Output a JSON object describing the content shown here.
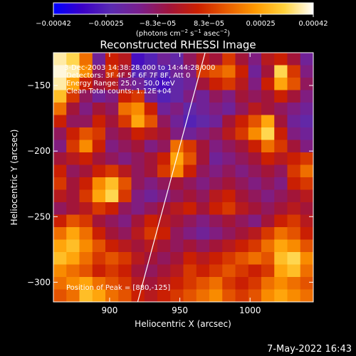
{
  "chart_data": {
    "type": "heatmap",
    "title": "Reconstructed RHESSI Image",
    "xlabel": "Heliocentric X (arcsec)",
    "ylabel": "Heliocentric Y (arcsec)",
    "xlim": [
      860,
      1045
    ],
    "ylim": [
      -315,
      -125
    ],
    "x_ticks": [
      900,
      950,
      1000
    ],
    "y_ticks": [
      -150,
      -200,
      -250,
      -300
    ],
    "x_tick_labels": [
      "900",
      "950",
      "1000"
    ],
    "y_tick_labels": [
      "−150",
      "−200",
      "−250",
      "−300"
    ],
    "colorbar": {
      "range": [
        -0.00042,
        0.00042
      ],
      "tick_values": [
        -0.00042,
        -0.00025,
        -8.3e-05,
        8.3e-05,
        0.00025,
        0.00042
      ],
      "tick_labels": [
        "−0.00042",
        "−0.00025",
        "−8.3e−05",
        "8.3e−05",
        "0.00025",
        "0.00042"
      ],
      "unit_prefix": "(photons cm",
      "unit_exp1": "−2",
      "unit_mid": " s",
      "unit_exp2": "−1",
      "unit_mid2": " asec",
      "unit_exp3": "−2",
      "unit_suffix": ")",
      "colors": [
        "#0000ff",
        "#3b00c8",
        "#5a2bb0",
        "#7a1e8c",
        "#a0143c",
        "#cc2000",
        "#e85c00",
        "#ff9a00",
        "#ffd23c",
        "#ffffff"
      ]
    },
    "annotations": {
      "time_range": "3-Dec-2003 14:38:28.000 to 14:44:28.000",
      "detectors": "Detectors: 3F 4F 5F 6F 7F 8F, Att 0",
      "energy": "Energy Range: 25.0 - 50.0 keV",
      "clean": "Clean    Total counts: 1.12E+04",
      "peak": "Position of Peak = [880,-125]"
    },
    "limb_line": {
      "x": [
        920,
        968
      ],
      "y": [
        -315,
        -125
      ]
    },
    "image_grid": {
      "rows": 20,
      "cols": 20,
      "values": [
        [
          0.95,
          0.9,
          0.7,
          0.3,
          0.55,
          0.5,
          0.15,
          0.2,
          0.3,
          0.25,
          0.4,
          0.5,
          0.45,
          0.6,
          0.45,
          0.35,
          0.5,
          0.55,
          0.45,
          0.3
        ],
        [
          0.98,
          0.95,
          0.75,
          0.4,
          0.6,
          0.45,
          0.2,
          0.25,
          0.2,
          0.3,
          0.35,
          0.6,
          0.65,
          0.7,
          0.55,
          0.3,
          0.45,
          0.9,
          0.6,
          0.35
        ],
        [
          0.95,
          0.8,
          0.55,
          0.45,
          0.5,
          0.35,
          0.3,
          0.2,
          0.15,
          0.25,
          0.3,
          0.45,
          0.55,
          0.6,
          0.5,
          0.35,
          0.55,
          0.8,
          0.65,
          0.4
        ],
        [
          0.85,
          0.6,
          0.4,
          0.3,
          0.35,
          0.55,
          0.6,
          0.3,
          0.2,
          0.25,
          0.35,
          0.3,
          0.4,
          0.35,
          0.45,
          0.4,
          0.45,
          0.55,
          0.45,
          0.35
        ],
        [
          0.7,
          0.45,
          0.35,
          0.45,
          0.4,
          0.7,
          0.75,
          0.55,
          0.3,
          0.35,
          0.25,
          0.3,
          0.35,
          0.3,
          0.4,
          0.5,
          0.45,
          0.4,
          0.35,
          0.3
        ],
        [
          0.55,
          0.4,
          0.4,
          0.55,
          0.45,
          0.6,
          0.8,
          0.65,
          0.4,
          0.3,
          0.2,
          0.25,
          0.3,
          0.45,
          0.55,
          0.65,
          0.8,
          0.45,
          0.3,
          0.25
        ],
        [
          0.4,
          0.55,
          0.65,
          0.6,
          0.4,
          0.45,
          0.55,
          0.5,
          0.45,
          0.35,
          0.3,
          0.35,
          0.4,
          0.5,
          0.6,
          0.75,
          0.9,
          0.55,
          0.35,
          0.3
        ],
        [
          0.35,
          0.6,
          0.75,
          0.55,
          0.35,
          0.4,
          0.45,
          0.35,
          0.4,
          0.7,
          0.6,
          0.45,
          0.35,
          0.4,
          0.45,
          0.55,
          0.7,
          0.6,
          0.45,
          0.35
        ],
        [
          0.45,
          0.5,
          0.55,
          0.45,
          0.4,
          0.35,
          0.4,
          0.45,
          0.55,
          0.8,
          0.65,
          0.45,
          0.3,
          0.35,
          0.4,
          0.45,
          0.55,
          0.5,
          0.55,
          0.6
        ],
        [
          0.55,
          0.4,
          0.45,
          0.55,
          0.6,
          0.5,
          0.4,
          0.45,
          0.6,
          0.75,
          0.55,
          0.4,
          0.35,
          0.4,
          0.35,
          0.4,
          0.45,
          0.4,
          0.6,
          0.7
        ],
        [
          0.6,
          0.45,
          0.55,
          0.75,
          0.85,
          0.65,
          0.4,
          0.35,
          0.4,
          0.45,
          0.4,
          0.35,
          0.4,
          0.45,
          0.4,
          0.35,
          0.4,
          0.35,
          0.55,
          0.6
        ],
        [
          0.5,
          0.45,
          0.6,
          0.8,
          0.9,
          0.6,
          0.35,
          0.3,
          0.35,
          0.4,
          0.45,
          0.4,
          0.5,
          0.55,
          0.45,
          0.4,
          0.35,
          0.4,
          0.45,
          0.5
        ],
        [
          0.4,
          0.45,
          0.5,
          0.6,
          0.55,
          0.4,
          0.35,
          0.4,
          0.45,
          0.5,
          0.55,
          0.45,
          0.55,
          0.6,
          0.5,
          0.45,
          0.4,
          0.45,
          0.5,
          0.45
        ],
        [
          0.55,
          0.65,
          0.6,
          0.45,
          0.4,
          0.35,
          0.45,
          0.55,
          0.5,
          0.45,
          0.4,
          0.35,
          0.4,
          0.45,
          0.4,
          0.35,
          0.45,
          0.55,
          0.6,
          0.5
        ],
        [
          0.7,
          0.8,
          0.7,
          0.55,
          0.45,
          0.4,
          0.5,
          0.6,
          0.55,
          0.4,
          0.35,
          0.3,
          0.35,
          0.4,
          0.45,
          0.5,
          0.6,
          0.7,
          0.65,
          0.55
        ],
        [
          0.8,
          0.85,
          0.75,
          0.65,
          0.55,
          0.5,
          0.45,
          0.5,
          0.45,
          0.4,
          0.45,
          0.4,
          0.45,
          0.5,
          0.55,
          0.6,
          0.7,
          0.8,
          0.75,
          0.65
        ],
        [
          0.85,
          0.8,
          0.7,
          0.6,
          0.65,
          0.6,
          0.5,
          0.45,
          0.4,
          0.45,
          0.55,
          0.5,
          0.55,
          0.6,
          0.65,
          0.7,
          0.65,
          0.85,
          0.9,
          0.75
        ],
        [
          0.75,
          0.7,
          0.65,
          0.55,
          0.6,
          0.55,
          0.45,
          0.4,
          0.45,
          0.5,
          0.6,
          0.55,
          0.6,
          0.65,
          0.6,
          0.55,
          0.6,
          0.8,
          0.85,
          0.7
        ],
        [
          0.7,
          0.75,
          0.8,
          0.7,
          0.65,
          0.6,
          0.5,
          0.45,
          0.5,
          0.55,
          0.6,
          0.65,
          0.7,
          0.6,
          0.55,
          0.6,
          0.7,
          0.75,
          0.7,
          0.65
        ],
        [
          0.65,
          0.7,
          0.85,
          0.8,
          0.7,
          0.65,
          0.55,
          0.5,
          0.55,
          0.6,
          0.65,
          0.7,
          0.75,
          0.65,
          0.6,
          0.65,
          0.75,
          0.8,
          0.75,
          0.7
        ]
      ]
    }
  },
  "footer": {
    "timestamp": "7-May-2022 16:43"
  }
}
